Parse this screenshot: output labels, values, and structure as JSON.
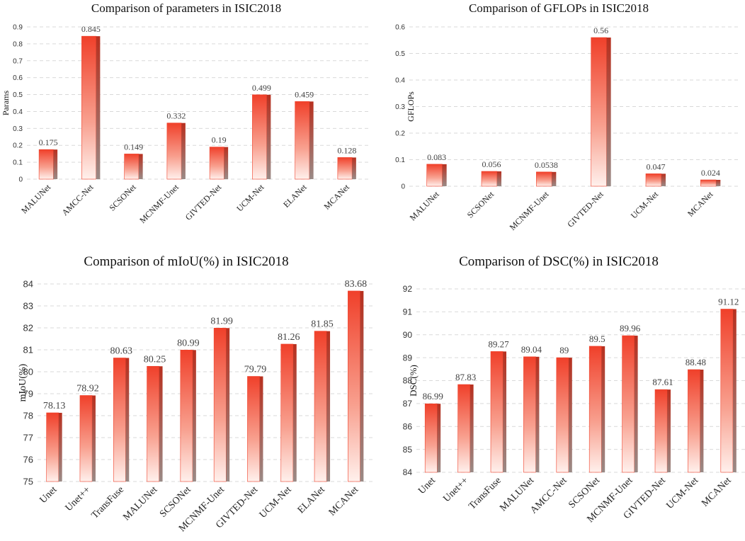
{
  "bar_color": "#f0402a",
  "bar_side_color": "#b8301f",
  "chart_data": [
    {
      "type": "bar",
      "title": "Comparison of parameters in ISIC2018",
      "xlabel": "",
      "ylabel": "Params",
      "categories": [
        "MALUNet",
        "AMCC-Net",
        "SCSONet",
        "MCNMF-Unet",
        "GIVTED-Net",
        "UCM-Net",
        "ELANet",
        "MCANet"
      ],
      "values": [
        0.175,
        0.845,
        0.149,
        0.332,
        0.19,
        0.499,
        0.459,
        0.128
      ],
      "value_labels": [
        "0.175",
        "0.845",
        "0.149",
        "0.332",
        "0.19",
        "0.499",
        "0.459",
        "0.128"
      ],
      "ylim": [
        0,
        0.9
      ],
      "yticks": [
        "0",
        "0.1",
        "0.2",
        "0.3",
        "0.4",
        "0.5",
        "0.6",
        "0.7",
        "0.8",
        "0.9"
      ],
      "grid": true
    },
    {
      "type": "bar",
      "title": "Comparison of GFLOPs in ISIC2018",
      "xlabel": "",
      "ylabel": "GFLOPs",
      "categories": [
        "MALUNet",
        "SCSONet",
        "MCNMF-Unet",
        "GIVTED-Net",
        "UCM-Net",
        "MCANet"
      ],
      "values": [
        0.083,
        0.056,
        0.0538,
        0.56,
        0.047,
        0.024
      ],
      "value_labels": [
        "0.083",
        "0.056",
        "0.0538",
        "0.56",
        "0.047",
        "0.024"
      ],
      "ylim": [
        0,
        0.6
      ],
      "yticks": [
        "0",
        "0.1",
        "0.2",
        "0.3",
        "0.4",
        "0.5",
        "0.6"
      ],
      "grid": true
    },
    {
      "type": "bar",
      "title": "Comparison of mIoU(%) in ISIC2018",
      "xlabel": "",
      "ylabel": "mIoU(%)",
      "categories": [
        "Unet",
        "Unet++",
        "TransFuse",
        "MALUNet",
        "SCSONet",
        "MCNMF-Unet",
        "GIVTED-Net",
        "UCM-Net",
        "ELANet",
        "MCANet"
      ],
      "values": [
        78.13,
        78.92,
        80.63,
        80.25,
        80.99,
        81.99,
        79.79,
        81.26,
        81.85,
        83.68
      ],
      "value_labels": [
        "78.13",
        "78.92",
        "80.63",
        "80.25",
        "80.99",
        "81.99",
        "79.79",
        "81.26",
        "81.85",
        "83.68"
      ],
      "ylim": [
        75,
        84
      ],
      "yticks": [
        "75",
        "76",
        "77",
        "78",
        "79",
        "80",
        "81",
        "82",
        "83",
        "84"
      ],
      "grid": true
    },
    {
      "type": "bar",
      "title": "Comparison of DSC(%) in ISIC2018",
      "xlabel": "",
      "ylabel": "DSC(%)",
      "categories": [
        "Unet",
        "Unet++",
        "TransFuse",
        "MALUNet",
        "AMCC-Net",
        "SCSONet",
        "MCNMF-Unet",
        "GIVTED-Net",
        "UCM-Net",
        "MCANet"
      ],
      "values": [
        86.99,
        87.83,
        89.27,
        89.04,
        89,
        89.5,
        89.96,
        87.61,
        88.48,
        91.12
      ],
      "value_labels": [
        "86.99",
        "87.83",
        "89.27",
        "89.04",
        "89",
        "89.5",
        "89.96",
        "87.61",
        "88.48",
        "91.12"
      ],
      "ylim": [
        84,
        92
      ],
      "yticks": [
        "84",
        "85",
        "86",
        "87",
        "88",
        "89",
        "90",
        "91",
        "92"
      ],
      "grid": true
    }
  ]
}
